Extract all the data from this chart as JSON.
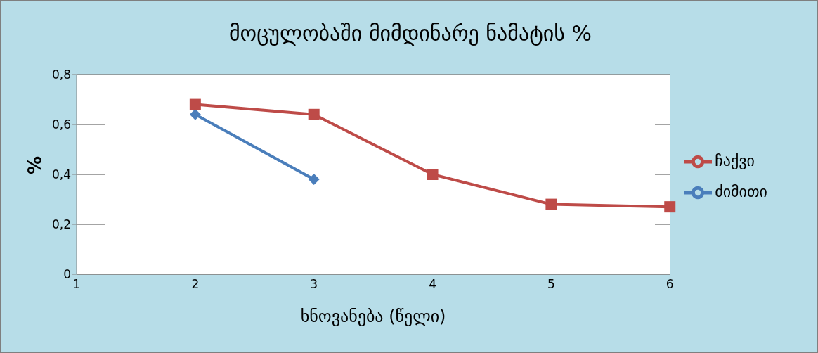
{
  "chart_data": {
    "type": "line",
    "title": "მოცულობაში მიმდინარე ნამატის %",
    "xlabel": "ხნოვანება (წელი)",
    "ylabel": "%",
    "categories": [
      "1",
      "2",
      "3",
      "4",
      "5",
      "6"
    ],
    "series": [
      {
        "name": "ძიმითი",
        "color": "#4a7ebb",
        "marker": "diamond",
        "values": [
          null,
          0.64,
          0.38,
          null,
          null,
          null
        ]
      },
      {
        "name": "ჩაქვი",
        "color": "#be4b48",
        "marker": "square",
        "values": [
          null,
          0.68,
          0.64,
          0.4,
          0.28,
          0.27
        ]
      }
    ],
    "ylim": [
      0,
      0.8
    ],
    "yticks": [
      {
        "value": 0,
        "label": "0"
      },
      {
        "value": 0.2,
        "label": "0,2"
      },
      {
        "value": 0.4,
        "label": "0,4"
      },
      {
        "value": 0.6,
        "label": "0,6"
      },
      {
        "value": 0.8,
        "label": "0,8"
      }
    ],
    "grid": "y",
    "legend": "right"
  }
}
